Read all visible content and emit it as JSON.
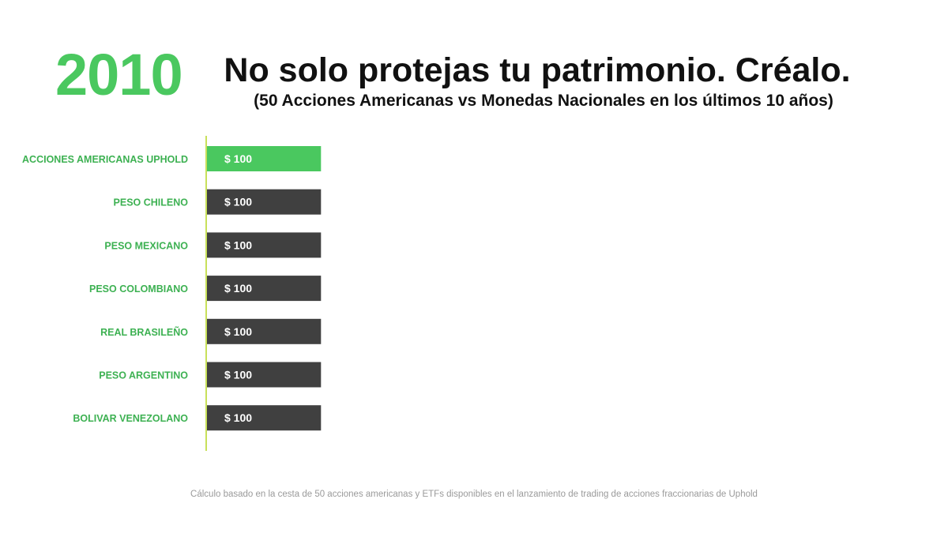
{
  "year": "2010",
  "footnote": "Cálculo basado en la cesta de 50 acciones americanas y ETFs disponibles en el lanzamiento de trading de acciones fraccionarias de Uphold",
  "colors": {
    "accent": "#4ac85f",
    "label": "#3db152",
    "bar": "#404040",
    "axis": "#c8e05a",
    "value_text": "#ffffff"
  },
  "chart_data": {
    "type": "bar",
    "orientation": "horizontal",
    "title": "No solo protejas tu patrimonio. Créalo.",
    "subtitle": "(50 Acciones Americanas vs Monedas Nacionales en los últimos 10 años)",
    "categories": [
      "ACCIONES AMERICANAS UPHOLD",
      "PESO CHILENO",
      "PESO MEXICANO",
      "PESO COLOMBIANO",
      "REAL BRASILEÑO",
      "PESO ARGENTINO",
      "BOLIVAR VENEZOLANO"
    ],
    "values": [
      100,
      100,
      100,
      100,
      100,
      100,
      100
    ],
    "value_labels": [
      "$ 100",
      "$ 100",
      "$ 100",
      "$ 100",
      "$ 100",
      "$ 100",
      "$ 100"
    ],
    "highlight_index": 0,
    "xlim": [
      0,
      650
    ],
    "grid": false,
    "legend": "none"
  }
}
